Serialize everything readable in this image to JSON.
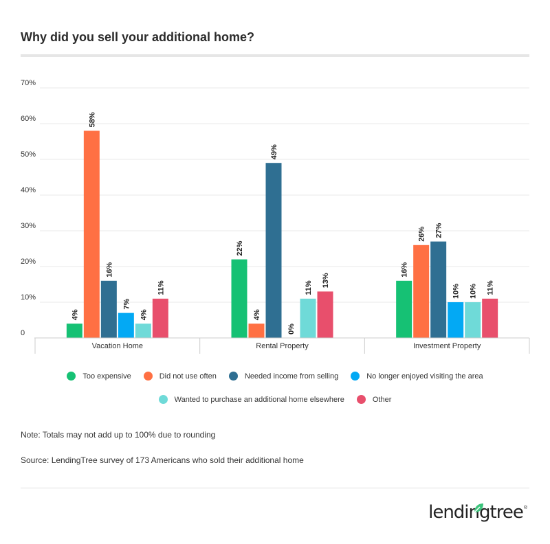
{
  "title": "Why did you sell your additional home?",
  "chart_data": {
    "type": "bar",
    "categories": [
      "Vacation Home",
      "Rental Property",
      "Investment Property"
    ],
    "series": [
      {
        "name": "Too expensive",
        "color": "#16c174",
        "values": [
          4,
          22,
          16
        ]
      },
      {
        "name": "Did not use often",
        "color": "#ff7043",
        "values": [
          58,
          4,
          26
        ]
      },
      {
        "name": "Needed income from selling",
        "color": "#2f6f92",
        "values": [
          16,
          49,
          27
        ]
      },
      {
        "name": "No longer enjoyed visiting the area",
        "color": "#03a9f4",
        "values": [
          7,
          0,
          10
        ]
      },
      {
        "name": "Wanted to purchase an additional home elsewhere",
        "color": "#6fdad8",
        "values": [
          4,
          11,
          10
        ]
      },
      {
        "name": "Other",
        "color": "#e84f6c",
        "values": [
          11,
          13,
          11
        ]
      }
    ],
    "ylim": [
      0,
      70
    ],
    "y_ticks": [
      "0",
      "10%",
      "20%",
      "30%",
      "40%",
      "50%",
      "60%",
      "70%"
    ],
    "value_suffix": "%",
    "grid": true,
    "legend_placement": "bottom"
  },
  "legend": {
    "row1": [
      "Too expensive",
      "Did not use often",
      "Needed income from selling",
      "No longer enjoyed visiting the area"
    ],
    "row2": [
      "Wanted to purchase an additional home elsewhere",
      "Other"
    ]
  },
  "note": "Note: Totals may not add up to 100% due to rounding",
  "source": "Source: LendingTree survey of 173 Americans who sold their additional home",
  "logo": {
    "text": "lendingtree",
    "mark": "®"
  }
}
